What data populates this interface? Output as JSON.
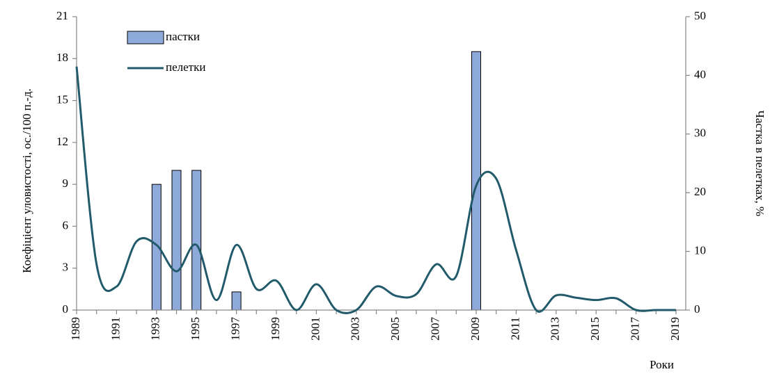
{
  "chart_data": {
    "type": "combo",
    "categories": [
      "1989",
      null,
      "1991",
      null,
      "1993",
      null,
      "1995",
      null,
      "1997",
      null,
      "1999",
      null,
      "2001",
      null,
      "2003",
      null,
      "2005",
      null,
      "2007",
      null,
      "2009",
      null,
      "2011",
      null,
      "2013",
      null,
      "2015",
      null,
      "2017",
      null,
      "2019"
    ],
    "series": [
      {
        "name": "пастки",
        "type": "bar",
        "color": "#8eaadb",
        "values": [
          null,
          null,
          null,
          null,
          9,
          10,
          10,
          null,
          1.3,
          null,
          null,
          null,
          null,
          null,
          null,
          null,
          null,
          null,
          null,
          null,
          18.5,
          null,
          null,
          null,
          null,
          null,
          null,
          null,
          null,
          null,
          null
        ]
      },
      {
        "name": "пелетки",
        "type": "line",
        "axis": "y2",
        "color": "#215a6a",
        "values": [
          41.5,
          7.8,
          4.0,
          11.7,
          11.1,
          6.6,
          11.1,
          1.7,
          11.1,
          3.6,
          5.0,
          0,
          4.4,
          0,
          0,
          4.0,
          2.4,
          2.7,
          7.8,
          5.8,
          21.2,
          22.4,
          10.2,
          0,
          2.5,
          2.1,
          1.7,
          2.0,
          0,
          0,
          0
        ]
      }
    ],
    "ylabel": "Коефіцієнт уловистості, ос./100 п.-д.",
    "y2label": "Частка в пелетках, %",
    "xlabel": "Роки",
    "ylim": [
      0,
      21
    ],
    "yticks": [
      0,
      3,
      6,
      9,
      12,
      15,
      18,
      21
    ],
    "y2lim": [
      0,
      50
    ],
    "y2ticks": [
      0,
      10,
      20,
      30,
      40,
      50
    ],
    "grid": false
  }
}
